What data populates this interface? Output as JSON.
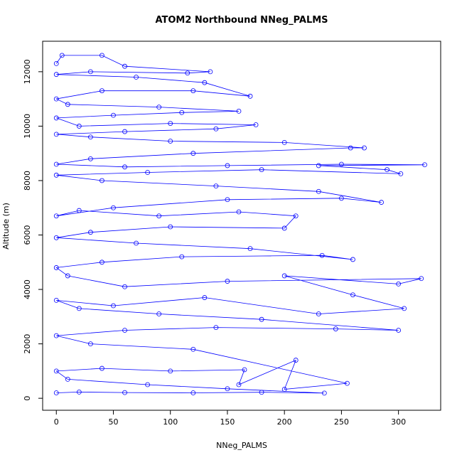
{
  "chart_data": {
    "type": "line",
    "title": "ATOM2 Northbound NNeg_PALMS",
    "x_label": "NNeg_PALMS",
    "y_label": "Altitude (m)",
    "x": [
      0,
      20,
      60,
      120,
      180,
      235,
      150,
      80,
      10,
      0,
      40,
      100,
      165,
      160,
      210,
      200,
      255,
      120,
      30,
      0,
      60,
      140,
      245,
      300,
      180,
      90,
      20,
      0,
      50,
      130,
      230,
      305,
      260,
      200,
      300,
      320,
      150,
      60,
      10,
      0,
      40,
      110,
      233,
      260,
      170,
      70,
      0,
      30,
      100,
      200,
      210,
      160,
      90,
      20,
      0,
      50,
      150,
      250,
      285,
      230,
      140,
      40,
      0,
      80,
      180,
      302,
      290,
      230,
      323,
      250,
      150,
      60,
      0,
      30,
      120,
      258,
      270,
      200,
      100,
      30,
      0,
      60,
      140,
      175,
      100,
      20,
      0,
      50,
      110,
      160,
      90,
      10,
      0,
      40,
      120,
      170,
      130,
      70,
      0,
      30,
      115,
      135,
      60,
      40,
      5,
      0
    ],
    "series": [
      {
        "name": "NNeg_PALMS",
        "color": "#0000ff",
        "values": [
          200,
          230,
          210,
          200,
          220,
          190,
          350,
          500,
          700,
          1000,
          1100,
          1000,
          1050,
          500,
          1400,
          330,
          550,
          1800,
          2000,
          2300,
          2500,
          2600,
          2550,
          2500,
          2900,
          3100,
          3300,
          3600,
          3400,
          3700,
          3100,
          3300,
          3800,
          4500,
          4200,
          4400,
          4300,
          4100,
          4500,
          4800,
          5000,
          5200,
          5250,
          5100,
          5500,
          5700,
          5900,
          6100,
          6300,
          6250,
          6700,
          6850,
          6700,
          6900,
          6700,
          7000,
          7300,
          7350,
          7200,
          7600,
          7800,
          8000,
          8200,
          8300,
          8400,
          8250,
          8400,
          8550,
          8580,
          8600,
          8550,
          8500,
          8600,
          8800,
          9000,
          9200,
          9200,
          9400,
          9450,
          9600,
          9700,
          9800,
          9900,
          10050,
          10100,
          10000,
          10300,
          10400,
          10500,
          10550,
          10700,
          10800,
          11000,
          11300,
          11300,
          11100,
          11600,
          11800,
          11900,
          12000,
          11950,
          12000,
          12200,
          12600,
          12600,
          12300
        ]
      }
    ],
    "xlim": [
      -12,
      337
    ],
    "ylim": [
      -440,
      13120
    ],
    "xticks": [
      0,
      50,
      100,
      150,
      200,
      250,
      300
    ],
    "yticks": [
      0,
      2000,
      4000,
      6000,
      8000,
      10000,
      12000
    ]
  }
}
